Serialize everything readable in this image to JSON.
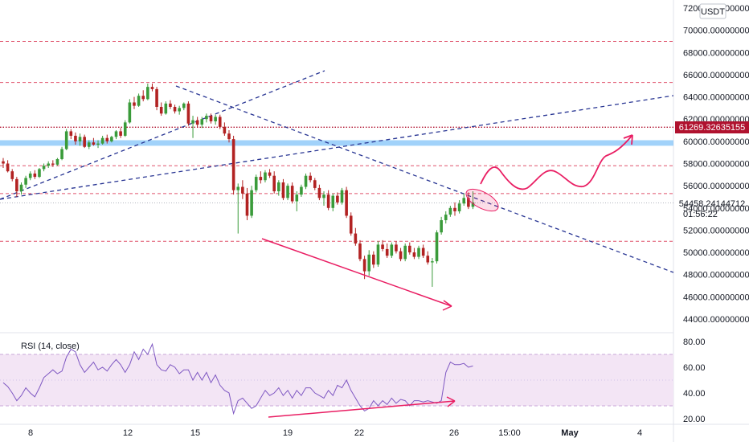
{
  "symbol": {
    "quote_currency": "USDT"
  },
  "colors": {
    "up": "#26a69a",
    "down": "#ef5350",
    "up_candle": "#3a9b3a",
    "down_candle": "#b22222",
    "trendline": "#283593",
    "level_dashed": "#e0526b",
    "level_dotted": "#b0122f",
    "support_zone": "#90caf9",
    "projection": "#e91e63",
    "rsi_line": "#7e57c2",
    "rsi_band": "#f3e5f5",
    "divergence": "#e91e63"
  },
  "price_axis": {
    "labels": [
      "72000.00000000",
      "70000.00000000",
      "68000.00000000",
      "66000.00000000",
      "64000.00000000",
      "62000.00000000",
      "60000.00000000",
      "58000.00000000",
      "56000.00000000",
      "54000.00000000",
      "52000.00000000",
      "50000.00000000",
      "48000.00000000",
      "46000.00000000",
      "44000.00000000"
    ]
  },
  "badges": {
    "level_price": "61269.32635155",
    "current_price": "54458.24144712",
    "countdown": "01:56:22"
  },
  "time_axis": {
    "labels": [
      "8",
      "12",
      "15",
      "19",
      "22",
      "26",
      "15:00",
      "May",
      "4"
    ]
  },
  "rsi": {
    "title": "RSI (14, close)",
    "axis_labels": [
      "80.00",
      "60.00",
      "40.00",
      "20.00"
    ],
    "upper": 70,
    "lower": 30
  },
  "chart_data": [
    {
      "type": "candlestick",
      "title": "",
      "ylim": [
        43000,
        72500
      ],
      "levels_dashed": [
        69000,
        65300,
        57800,
        55300,
        51000
      ],
      "level_dotted": 61269.33,
      "support_zone": [
        59600,
        60100
      ],
      "current_price": 54458.24,
      "candles": [
        {
          "o": 58200,
          "h": 58500,
          "l": 57600,
          "c": 58000
        },
        {
          "o": 58000,
          "h": 58300,
          "l": 57200,
          "c": 57300
        },
        {
          "o": 57300,
          "h": 57500,
          "l": 56400,
          "c": 56600
        },
        {
          "o": 56600,
          "h": 56800,
          "l": 55000,
          "c": 55500
        },
        {
          "o": 55500,
          "h": 56300,
          "l": 55200,
          "c": 56100
        },
        {
          "o": 56100,
          "h": 56900,
          "l": 55800,
          "c": 56700
        },
        {
          "o": 56700,
          "h": 57300,
          "l": 56500,
          "c": 57100
        },
        {
          "o": 57100,
          "h": 57400,
          "l": 56600,
          "c": 56800
        },
        {
          "o": 56800,
          "h": 57600,
          "l": 56700,
          "c": 57500
        },
        {
          "o": 57500,
          "h": 58000,
          "l": 57300,
          "c": 57800
        },
        {
          "o": 57800,
          "h": 58200,
          "l": 57600,
          "c": 58000
        },
        {
          "o": 58000,
          "h": 58300,
          "l": 57700,
          "c": 57900
        },
        {
          "o": 57900,
          "h": 58500,
          "l": 57800,
          "c": 58400
        },
        {
          "o": 58400,
          "h": 59500,
          "l": 58300,
          "c": 59300
        },
        {
          "o": 59300,
          "h": 61100,
          "l": 59200,
          "c": 60900
        },
        {
          "o": 60900,
          "h": 61100,
          "l": 60200,
          "c": 60500
        },
        {
          "o": 60500,
          "h": 60800,
          "l": 59700,
          "c": 60000
        },
        {
          "o": 60000,
          "h": 60700,
          "l": 59600,
          "c": 60400
        },
        {
          "o": 60400,
          "h": 60600,
          "l": 59400,
          "c": 59500
        },
        {
          "o": 59500,
          "h": 60100,
          "l": 59300,
          "c": 59900
        },
        {
          "o": 59900,
          "h": 60300,
          "l": 59600,
          "c": 59700
        },
        {
          "o": 59700,
          "h": 60100,
          "l": 59400,
          "c": 59800
        },
        {
          "o": 59800,
          "h": 60500,
          "l": 59700,
          "c": 60300
        },
        {
          "o": 60300,
          "h": 60600,
          "l": 59800,
          "c": 60000
        },
        {
          "o": 60000,
          "h": 60500,
          "l": 59900,
          "c": 60400
        },
        {
          "o": 60400,
          "h": 61000,
          "l": 60200,
          "c": 60900
        },
        {
          "o": 60900,
          "h": 61200,
          "l": 60300,
          "c": 60500
        },
        {
          "o": 60500,
          "h": 61900,
          "l": 60400,
          "c": 61700
        },
        {
          "o": 61700,
          "h": 63800,
          "l": 61600,
          "c": 63500
        },
        {
          "o": 63500,
          "h": 64000,
          "l": 62900,
          "c": 63200
        },
        {
          "o": 63200,
          "h": 64300,
          "l": 63100,
          "c": 64100
        },
        {
          "o": 64100,
          "h": 64600,
          "l": 63600,
          "c": 63800
        },
        {
          "o": 63800,
          "h": 65200,
          "l": 63700,
          "c": 64900
        },
        {
          "o": 64900,
          "h": 65200,
          "l": 64500,
          "c": 64700
        },
        {
          "o": 64700,
          "h": 64900,
          "l": 62800,
          "c": 63100
        },
        {
          "o": 63100,
          "h": 63500,
          "l": 62300,
          "c": 62500
        },
        {
          "o": 62500,
          "h": 63600,
          "l": 62400,
          "c": 63400
        },
        {
          "o": 63400,
          "h": 63700,
          "l": 62900,
          "c": 63100
        },
        {
          "o": 63100,
          "h": 63300,
          "l": 62500,
          "c": 62700
        },
        {
          "o": 62700,
          "h": 63200,
          "l": 62400,
          "c": 63000
        },
        {
          "o": 63000,
          "h": 63500,
          "l": 62800,
          "c": 63400
        },
        {
          "o": 63400,
          "h": 63600,
          "l": 61400,
          "c": 61600
        },
        {
          "o": 61600,
          "h": 62300,
          "l": 60300,
          "c": 61900
        },
        {
          "o": 61900,
          "h": 62200,
          "l": 61300,
          "c": 61500
        },
        {
          "o": 61500,
          "h": 62200,
          "l": 61200,
          "c": 62000
        },
        {
          "o": 62000,
          "h": 62500,
          "l": 61700,
          "c": 62300
        },
        {
          "o": 62300,
          "h": 62500,
          "l": 61600,
          "c": 61800
        },
        {
          "o": 61800,
          "h": 62400,
          "l": 61500,
          "c": 62200
        },
        {
          "o": 62200,
          "h": 62400,
          "l": 61100,
          "c": 61300
        },
        {
          "o": 61300,
          "h": 61700,
          "l": 60500,
          "c": 60700
        },
        {
          "o": 60700,
          "h": 61000,
          "l": 59900,
          "c": 60200
        },
        {
          "o": 60200,
          "h": 60500,
          "l": 55200,
          "c": 55600
        },
        {
          "o": 55600,
          "h": 56200,
          "l": 51700,
          "c": 55900
        },
        {
          "o": 55900,
          "h": 56500,
          "l": 54800,
          "c": 55300
        },
        {
          "o": 55300,
          "h": 55800,
          "l": 52900,
          "c": 53300
        },
        {
          "o": 53300,
          "h": 56000,
          "l": 53100,
          "c": 55600
        },
        {
          "o": 55600,
          "h": 57000,
          "l": 55400,
          "c": 56800
        },
        {
          "o": 56800,
          "h": 57300,
          "l": 56200,
          "c": 56500
        },
        {
          "o": 56500,
          "h": 57400,
          "l": 56300,
          "c": 57200
        },
        {
          "o": 57200,
          "h": 57500,
          "l": 56700,
          "c": 56900
        },
        {
          "o": 56900,
          "h": 57300,
          "l": 55300,
          "c": 55500
        },
        {
          "o": 55500,
          "h": 56500,
          "l": 55100,
          "c": 56300
        },
        {
          "o": 56300,
          "h": 56600,
          "l": 54700,
          "c": 54900
        },
        {
          "o": 54900,
          "h": 56200,
          "l": 54700,
          "c": 56000
        },
        {
          "o": 56000,
          "h": 56300,
          "l": 54400,
          "c": 54600
        },
        {
          "o": 54600,
          "h": 55500,
          "l": 53700,
          "c": 55200
        },
        {
          "o": 55200,
          "h": 56100,
          "l": 55000,
          "c": 55900
        },
        {
          "o": 55900,
          "h": 57100,
          "l": 55700,
          "c": 56900
        },
        {
          "o": 56900,
          "h": 57200,
          "l": 56300,
          "c": 56500
        },
        {
          "o": 56500,
          "h": 56700,
          "l": 55600,
          "c": 55800
        },
        {
          "o": 55800,
          "h": 56100,
          "l": 54700,
          "c": 54900
        },
        {
          "o": 54900,
          "h": 55500,
          "l": 54200,
          "c": 55200
        },
        {
          "o": 55200,
          "h": 55600,
          "l": 53800,
          "c": 54000
        },
        {
          "o": 54000,
          "h": 55300,
          "l": 53700,
          "c": 55100
        },
        {
          "o": 55100,
          "h": 55400,
          "l": 54300,
          "c": 54500
        },
        {
          "o": 54500,
          "h": 55800,
          "l": 54300,
          "c": 55600
        },
        {
          "o": 55600,
          "h": 55900,
          "l": 53100,
          "c": 53300
        },
        {
          "o": 53300,
          "h": 53600,
          "l": 51500,
          "c": 51700
        },
        {
          "o": 51700,
          "h": 52200,
          "l": 50600,
          "c": 50800
        },
        {
          "o": 50800,
          "h": 51100,
          "l": 49200,
          "c": 49400
        },
        {
          "o": 49400,
          "h": 49700,
          "l": 47600,
          "c": 48300
        },
        {
          "o": 48300,
          "h": 50200,
          "l": 47900,
          "c": 49800
        },
        {
          "o": 49800,
          "h": 50100,
          "l": 48600,
          "c": 48900
        },
        {
          "o": 48900,
          "h": 51000,
          "l": 48700,
          "c": 50700
        },
        {
          "o": 50700,
          "h": 51100,
          "l": 50100,
          "c": 50300
        },
        {
          "o": 50300,
          "h": 50800,
          "l": 49500,
          "c": 49700
        },
        {
          "o": 49700,
          "h": 50900,
          "l": 49500,
          "c": 50700
        },
        {
          "o": 50700,
          "h": 51000,
          "l": 49900,
          "c": 50100
        },
        {
          "o": 50100,
          "h": 50400,
          "l": 49200,
          "c": 49400
        },
        {
          "o": 49400,
          "h": 50800,
          "l": 49200,
          "c": 50600
        },
        {
          "o": 50600,
          "h": 50900,
          "l": 49800,
          "c": 50000
        },
        {
          "o": 50000,
          "h": 50400,
          "l": 49400,
          "c": 49600
        },
        {
          "o": 49600,
          "h": 50600,
          "l": 49400,
          "c": 50400
        },
        {
          "o": 50400,
          "h": 50700,
          "l": 49500,
          "c": 49700
        },
        {
          "o": 49700,
          "h": 50100,
          "l": 48900,
          "c": 49100
        },
        {
          "o": 49100,
          "h": 49500,
          "l": 46900,
          "c": 49200
        },
        {
          "o": 49200,
          "h": 52000,
          "l": 49000,
          "c": 51800
        },
        {
          "o": 51800,
          "h": 53200,
          "l": 51600,
          "c": 52900
        },
        {
          "o": 52900,
          "h": 53700,
          "l": 52600,
          "c": 53400
        },
        {
          "o": 53400,
          "h": 54200,
          "l": 53200,
          "c": 54000
        },
        {
          "o": 54000,
          "h": 54500,
          "l": 53300,
          "c": 53700
        },
        {
          "o": 53700,
          "h": 54700,
          "l": 53500,
          "c": 54400
        },
        {
          "o": 54400,
          "h": 55300,
          "l": 54200,
          "c": 54900
        },
        {
          "o": 54900,
          "h": 55400,
          "l": 53900,
          "c": 54100
        },
        {
          "o": 54100,
          "h": 55500,
          "l": 53900,
          "c": 54500
        }
      ],
      "rsi_values": [
        48,
        45,
        40,
        34,
        38,
        44,
        40,
        37,
        44,
        52,
        55,
        58,
        55,
        57,
        68,
        74,
        72,
        62,
        56,
        60,
        64,
        58,
        60,
        57,
        62,
        66,
        62,
        56,
        62,
        72,
        66,
        74,
        70,
        78,
        62,
        58,
        57,
        62,
        60,
        55,
        58,
        58,
        50,
        56,
        50,
        56,
        48,
        54,
        46,
        42,
        40,
        24,
        34,
        36,
        32,
        28,
        30,
        36,
        42,
        38,
        40,
        44,
        38,
        42,
        36,
        42,
        38,
        44,
        44,
        40,
        38,
        36,
        42,
        38,
        46,
        44,
        50,
        42,
        36,
        30,
        26,
        28,
        34,
        30,
        34,
        31,
        36,
        32,
        35,
        34,
        30,
        34,
        34,
        33,
        34,
        33,
        32,
        34,
        56,
        64,
        62,
        62,
        63,
        60,
        61
      ]
    }
  ]
}
